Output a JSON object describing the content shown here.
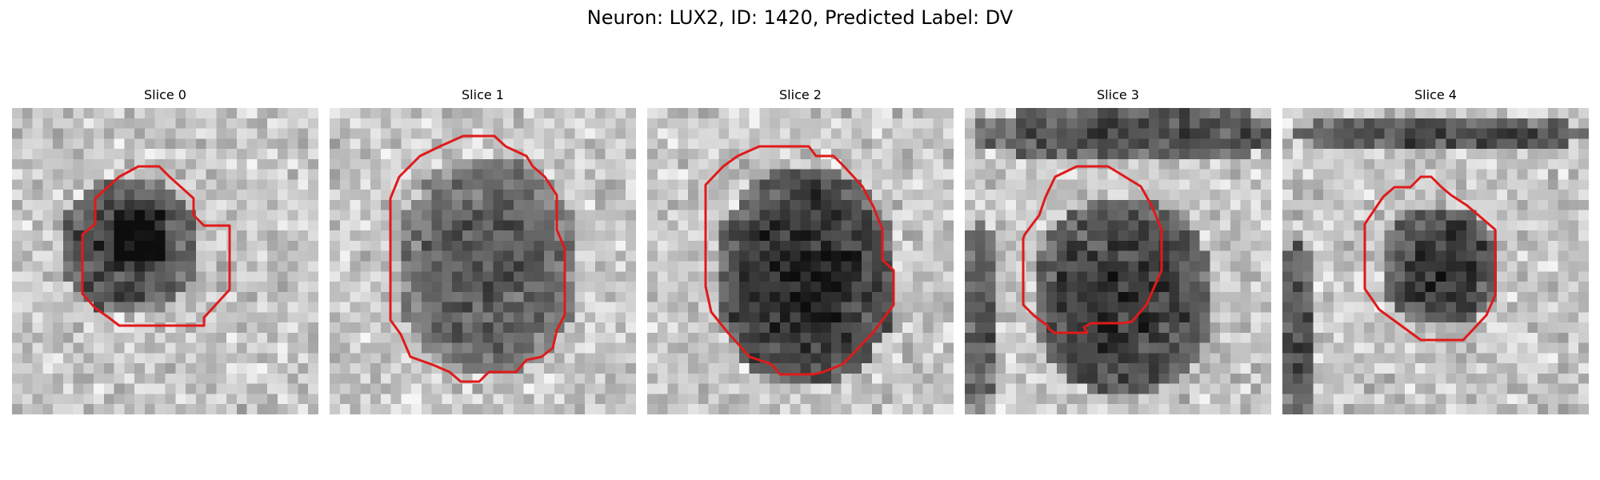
{
  "figure": {
    "title": "Neuron: LUX2, ID: 1420, Predicted Label: DV",
    "contour_color": "#e01a1a"
  },
  "slices": [
    {
      "title": "Slice 0"
    },
    {
      "title": "Slice 1"
    },
    {
      "title": "Slice 2"
    },
    {
      "title": "Slice 3"
    },
    {
      "title": "Slice 4"
    }
  ]
}
